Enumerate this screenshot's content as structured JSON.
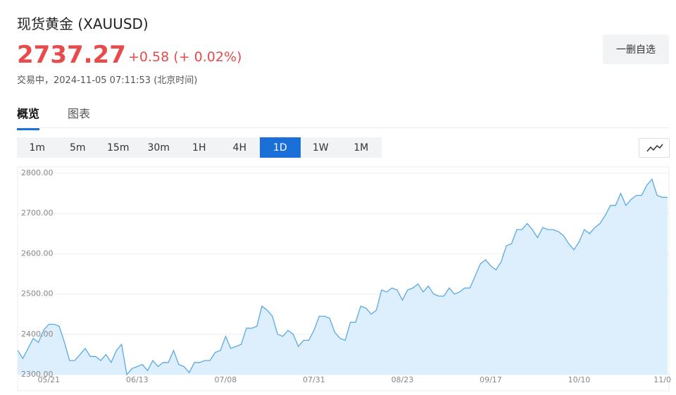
{
  "header": {
    "title": "现货黄金 (XAUUSD)",
    "price": "2737.27",
    "change": "+0.58",
    "change_pct": "(+ 0.02%)",
    "status": "交易中，2024-11-05 07:11:53 (北京时间)",
    "button": "一删自选"
  },
  "tabs": [
    "概览",
    "图表"
  ],
  "active_tab": 0,
  "periods": [
    "1m",
    "5m",
    "15m",
    "30m",
    "1H",
    "4H",
    "1D",
    "1W",
    "1M"
  ],
  "active_period": 6,
  "chart_data": {
    "type": "area",
    "color": "#5aa9e6",
    "fill": "#ddeefc",
    "grid": true,
    "ylim": [
      2300,
      2800
    ],
    "yticks": [
      {
        "value": 2300,
        "label": "2300.00"
      },
      {
        "value": 2400,
        "label": "2400.00"
      },
      {
        "value": 2500,
        "label": "2500.00"
      },
      {
        "value": 2600,
        "label": "2600.00"
      },
      {
        "value": 2700,
        "label": "2700.00"
      },
      {
        "value": 2800,
        "label": "2800.00"
      }
    ],
    "categories": [
      null,
      null,
      null,
      null,
      null,
      null,
      "05/21",
      null,
      null,
      null,
      null,
      null,
      null,
      null,
      null,
      null,
      null,
      null,
      null,
      null,
      null,
      null,
      null,
      "06/13",
      null,
      null,
      null,
      null,
      null,
      null,
      null,
      null,
      null,
      null,
      null,
      null,
      null,
      null,
      null,
      null,
      "07/08",
      null,
      null,
      null,
      null,
      null,
      null,
      null,
      null,
      null,
      null,
      null,
      null,
      null,
      null,
      null,
      null,
      "07/31",
      null,
      null,
      null,
      null,
      null,
      null,
      null,
      null,
      null,
      null,
      null,
      null,
      null,
      null,
      null,
      null,
      "08/23",
      null,
      null,
      null,
      null,
      null,
      null,
      null,
      null,
      null,
      null,
      null,
      null,
      null,
      null,
      null,
      null,
      "09/17",
      null,
      null,
      null,
      null,
      null,
      null,
      null,
      null,
      null,
      null,
      null,
      null,
      null,
      null,
      null,
      null,
      "10/10",
      null,
      null,
      null,
      null,
      null,
      null,
      null,
      null,
      null,
      null,
      null,
      null,
      null,
      null,
      null,
      "11/0",
      null
    ],
    "values": [
      2360,
      2340,
      2365,
      2390,
      2380,
      2410,
      2425,
      2425,
      2420,
      2380,
      2335,
      2335,
      2350,
      2365,
      2345,
      2345,
      2335,
      2350,
      2330,
      2360,
      2375,
      2300,
      2315,
      2320,
      2325,
      2310,
      2335,
      2320,
      2330,
      2330,
      2360,
      2325,
      2320,
      2305,
      2330,
      2330,
      2335,
      2335,
      2355,
      2360,
      2395,
      2365,
      2370,
      2375,
      2415,
      2415,
      2420,
      2470,
      2460,
      2445,
      2400,
      2395,
      2410,
      2400,
      2370,
      2385,
      2385,
      2410,
      2445,
      2445,
      2440,
      2405,
      2390,
      2385,
      2430,
      2430,
      2470,
      2465,
      2450,
      2460,
      2510,
      2505,
      2515,
      2510,
      2485,
      2510,
      2515,
      2525,
      2505,
      2520,
      2500,
      2495,
      2495,
      2515,
      2500,
      2505,
      2515,
      2515,
      2545,
      2575,
      2585,
      2570,
      2560,
      2580,
      2620,
      2625,
      2660,
      2660,
      2675,
      2660,
      2640,
      2665,
      2660,
      2660,
      2655,
      2645,
      2625,
      2610,
      2630,
      2660,
      2650,
      2665,
      2675,
      2695,
      2720,
      2720,
      2750,
      2720,
      2735,
      2745,
      2745,
      2770,
      2785,
      2745,
      2740,
      2740
    ]
  }
}
